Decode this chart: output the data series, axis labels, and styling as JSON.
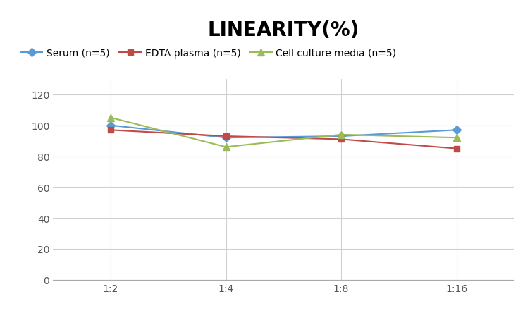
{
  "title": "LINEARITY(%)",
  "x_labels": [
    "1:2",
    "1:4",
    "1:8",
    "1:16"
  ],
  "x_positions": [
    0,
    1,
    2,
    3
  ],
  "series": [
    {
      "name": "Serum (n=5)",
      "values": [
        100,
        92,
        93,
        97
      ],
      "color": "#5B9BD5",
      "marker": "D",
      "marker_size": 6
    },
    {
      "name": "EDTA plasma (n=5)",
      "values": [
        97,
        93,
        91,
        85
      ],
      "color": "#BE4B48",
      "marker": "s",
      "marker_size": 6
    },
    {
      "name": "Cell culture media (n=5)",
      "values": [
        105,
        86,
        94,
        92
      ],
      "color": "#9BBB59",
      "marker": "^",
      "marker_size": 7
    }
  ],
  "ylim": [
    0,
    130
  ],
  "yticks": [
    0,
    20,
    40,
    60,
    80,
    100,
    120
  ],
  "background_color": "#ffffff",
  "grid_color": "#d0d0d0",
  "title_fontsize": 20,
  "title_fontweight": "bold",
  "legend_fontsize": 10,
  "tick_fontsize": 10,
  "figsize": [
    7.52,
    4.52
  ],
  "dpi": 100
}
